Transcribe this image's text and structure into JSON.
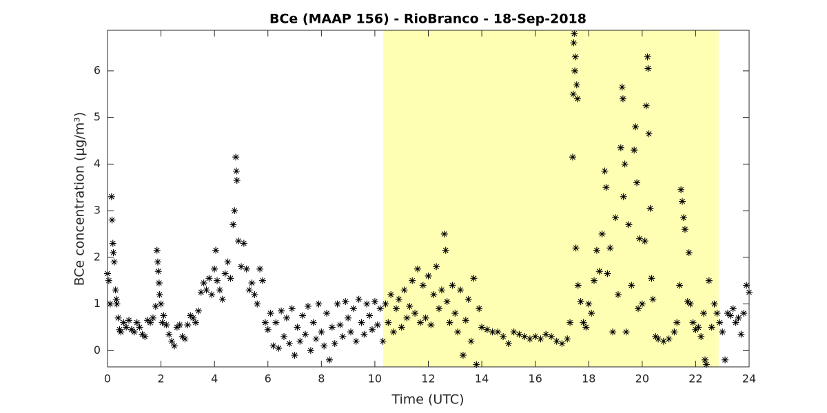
{
  "chart_data": {
    "type": "scatter",
    "title": "BCe (MAAP 156) - RioBranco - 18-Sep-2018",
    "x_label": "Time (UTC)",
    "y_label": "BCe concentration (μg/m³)",
    "xlim": [
      0,
      24
    ],
    "xticks": [
      0,
      2,
      4,
      6,
      8,
      10,
      12,
      14,
      16,
      18,
      20,
      22,
      24
    ],
    "ylim": [
      -0.35,
      6.87
    ],
    "yticks": [
      0,
      1,
      2,
      3,
      4,
      5,
      6
    ],
    "shade": [
      10.31,
      22.86
    ],
    "shade_color": "#ffffb3",
    "color": "#000000",
    "x": [
      0,
      0.05,
      0.1,
      0.15,
      0.17,
      0.2,
      0.22,
      0.25,
      0.3,
      0.33,
      0.35,
      0.4,
      0.45,
      0.5,
      0.6,
      0.7,
      0.8,
      0.9,
      1,
      1.1,
      1.2,
      1.3,
      1.4,
      1.5,
      1.6,
      1.7,
      1.8,
      1.85,
      1.88,
      1.9,
      1.93,
      1.95,
      2,
      2.05,
      2.1,
      2.2,
      2.3,
      2.4,
      2.5,
      2.6,
      2.7,
      2.8,
      2.9,
      3,
      3.1,
      3.2,
      3.3,
      3.4,
      3.5,
      3.6,
      3.7,
      3.8,
      3.9,
      4,
      4.05,
      4.1,
      4.2,
      4.3,
      4.4,
      4.5,
      4.6,
      4.7,
      4.75,
      4.8,
      4.82,
      4.84,
      4.9,
      5,
      5.1,
      5.2,
      5.3,
      5.4,
      5.5,
      5.6,
      5.7,
      5.8,
      5.9,
      6,
      6.1,
      6.2,
      6.3,
      6.4,
      6.5,
      6.6,
      6.7,
      6.8,
      6.9,
      7,
      7.1,
      7.2,
      7.3,
      7.4,
      7.5,
      7.6,
      7.7,
      7.8,
      7.9,
      8,
      8.1,
      8.2,
      8.3,
      8.4,
      8.5,
      8.6,
      8.7,
      8.8,
      8.9,
      9,
      9.1,
      9.2,
      9.3,
      9.4,
      9.5,
      9.6,
      9.7,
      9.8,
      9.9,
      10,
      10.1,
      10.2,
      10.3,
      10.4,
      10.5,
      10.6,
      10.7,
      10.8,
      10.9,
      11,
      11.1,
      11.2,
      11.3,
      11.4,
      11.5,
      11.6,
      11.7,
      11.8,
      11.9,
      12,
      12.1,
      12.2,
      12.3,
      12.4,
      12.5,
      12.6,
      12.65,
      12.7,
      12.8,
      12.9,
      13,
      13.1,
      13.2,
      13.3,
      13.4,
      13.5,
      13.6,
      13.7,
      13.8,
      13.9,
      14,
      14.2,
      14.4,
      14.6,
      14.8,
      15,
      15.2,
      15.4,
      15.6,
      15.8,
      16,
      16.2,
      16.4,
      16.6,
      16.8,
      17,
      17.2,
      17.3,
      17.4,
      17.42,
      17.44,
      17.46,
      17.48,
      17.5,
      17.52,
      17.55,
      17.58,
      17.6,
      17.7,
      17.8,
      17.9,
      18,
      18.1,
      18.2,
      18.3,
      18.4,
      18.5,
      18.6,
      18.65,
      18.7,
      18.8,
      18.9,
      19,
      19.1,
      19.2,
      19.25,
      19.28,
      19.3,
      19.35,
      19.4,
      19.5,
      19.6,
      19.7,
      19.75,
      19.8,
      19.85,
      19.9,
      20,
      20.1,
      20.15,
      20.2,
      20.22,
      20.25,
      20.3,
      20.35,
      20.4,
      20.5,
      20.6,
      20.8,
      21,
      21.2,
      21.3,
      21.4,
      21.45,
      21.5,
      21.55,
      21.6,
      21.7,
      21.75,
      21.8,
      21.9,
      22,
      22.1,
      22.2,
      22.3,
      22.35,
      22.4,
      22.5,
      22.6,
      22.7,
      22.8,
      22.9,
      23,
      23.1,
      23.2,
      23.3,
      23.4,
      23.5,
      23.6,
      23.7,
      23.8,
      23.9,
      24
    ],
    "values": [
      1.65,
      1.5,
      1.0,
      3.3,
      2.8,
      2.3,
      2.1,
      1.9,
      1.3,
      1.1,
      1.0,
      0.7,
      0.45,
      0.4,
      0.6,
      0.5,
      0.65,
      0.45,
      0.4,
      0.6,
      0.5,
      0.35,
      0.3,
      0.65,
      0.6,
      0.7,
      0.95,
      2.15,
      1.9,
      1.7,
      1.45,
      1.2,
      1.0,
      0.6,
      0.75,
      0.55,
      0.35,
      0.2,
      0.1,
      0.5,
      0.55,
      0.3,
      0.25,
      0.55,
      0.75,
      0.7,
      0.6,
      0.85,
      1.25,
      1.45,
      1.3,
      1.55,
      1.2,
      1.75,
      2.15,
      1.5,
      1.3,
      1.1,
      1.65,
      1.9,
      1.55,
      2.7,
      3.0,
      4.15,
      3.85,
      3.65,
      2.35,
      1.8,
      2.3,
      1.75,
      1.3,
      1.45,
      1.2,
      1.0,
      1.75,
      1.5,
      0.6,
      0.45,
      0.8,
      0.1,
      0.6,
      0.05,
      0.85,
      0.3,
      0.7,
      0.15,
      0.9,
      -0.1,
      0.5,
      0.2,
      0.75,
      0.35,
      0.95,
      0,
      0.6,
      0.25,
      1.0,
      0.4,
      0.1,
      0.8,
      -0.2,
      0.5,
      0.15,
      1.0,
      0.55,
      0.3,
      1.05,
      0.7,
      0.4,
      0.9,
      0.2,
      1.1,
      0.6,
      0.35,
      1.0,
      0.75,
      0.45,
      1.05,
      0.55,
      0.9,
      0.2,
      1.0,
      0.6,
      1.2,
      0.4,
      0.9,
      1.1,
      0.5,
      1.3,
      0.7,
      0.95,
      1.5,
      0.8,
      1.75,
      0.6,
      1.4,
      0.7,
      1.6,
      0.55,
      1.2,
      1.8,
      0.9,
      1.3,
      2.5,
      2.15,
      1.05,
      0.6,
      1.4,
      0.8,
      0.4,
      1.3,
      -0.1,
      0.65,
      1.1,
      0.2,
      1.55,
      -0.3,
      0.9,
      0.5,
      0.45,
      0.4,
      0.4,
      0.3,
      0.15,
      0.4,
      0.35,
      0.3,
      0.25,
      0.3,
      0.25,
      0.35,
      0.3,
      0.2,
      0.15,
      0.25,
      0.6,
      4.15,
      5.5,
      6.6,
      6.8,
      6.0,
      6.3,
      2.2,
      5.7,
      5.4,
      1.4,
      1.05,
      0.6,
      0.5,
      1.0,
      0.8,
      1.5,
      2.15,
      1.7,
      2.5,
      3.85,
      3.5,
      1.65,
      2.2,
      0.4,
      2.85,
      1.2,
      4.35,
      5.65,
      5.4,
      3.3,
      4.0,
      0.4,
      2.7,
      1.4,
      4.3,
      4.8,
      3.6,
      0.9,
      2.4,
      1.0,
      2.35,
      5.25,
      6.3,
      6.05,
      4.65,
      3.05,
      1.55,
      1.1,
      0.3,
      0.25,
      0.2,
      0.25,
      0.4,
      0.6,
      1.4,
      3.45,
      3.2,
      2.85,
      2.6,
      1.05,
      2.1,
      1.0,
      0.6,
      0.45,
      0.5,
      0.3,
      0.8,
      -0.2,
      -0.3,
      1.5,
      0.5,
      1.0,
      0.8,
      0.6,
      0.4,
      -0.2,
      0.8,
      0.75,
      0.9,
      0.6,
      0.7,
      0.35,
      0.8,
      1.4,
      1.25
    ]
  }
}
